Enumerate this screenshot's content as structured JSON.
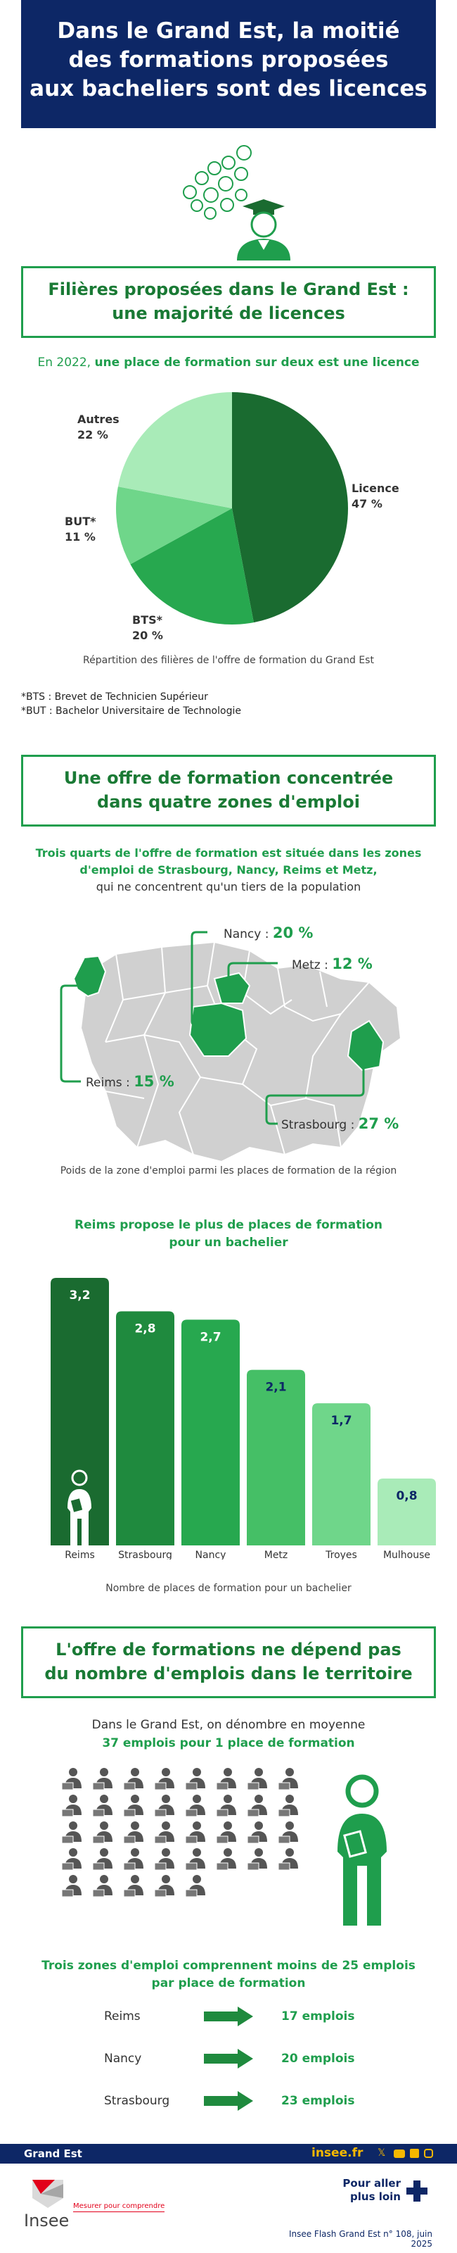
{
  "header": {
    "title_lines": [
      "Dans le Grand Est, la moitié",
      "des formations proposées",
      "aux bacheliers sont des licences"
    ]
  },
  "section1": {
    "title_lines": [
      "Filières proposées dans le Grand Est :",
      "une majorité de licences"
    ],
    "subtitle_prefix": "En 2022, ",
    "subtitle_bold": "une place de formation sur deux est une licence",
    "caption": "Répartition des filières de l'offre de formation du Grand Est",
    "footnotes": [
      "*BTS : Brevet de Technicien Supérieur",
      "*BUT : Bachelor Universitaire de Technologie"
    ]
  },
  "chart_data": [
    {
      "type": "pie",
      "slices": [
        {
          "label": "Licence",
          "value": 47,
          "display": "47 %",
          "color": "#1a6b30"
        },
        {
          "label": "BTS*",
          "value": 20,
          "display": "20 %",
          "color": "#27a84f"
        },
        {
          "label": "BUT*",
          "value": 11,
          "display": "11 %",
          "color": "#6fd68a"
        },
        {
          "label": "Autres",
          "value": 22,
          "display": "22 %",
          "color": "#a9ebb8"
        }
      ]
    },
    {
      "type": "bar",
      "categories": [
        "Reims",
        "Strasbourg",
        "Nancy",
        "Metz",
        "Troyes",
        "Mulhouse"
      ],
      "values": [
        3.2,
        2.8,
        2.7,
        2.1,
        1.7,
        0.8
      ],
      "value_labels": [
        "3,2",
        "2,8",
        "2,7",
        "2,1",
        "1,7",
        "0,8"
      ],
      "colors": [
        "#1a6b30",
        "#1f8a3e",
        "#27a84f",
        "#45bf66",
        "#6fd68a",
        "#a9ebb8"
      ],
      "title": "Reims propose le plus de places de formation pour un bachelier",
      "caption": "Nombre de places de formation pour un bachelier"
    }
  ],
  "section2": {
    "title_lines": [
      "Une offre de formation concentrée",
      "dans quatre zones d'emploi"
    ],
    "subtitle_bold_lines": [
      "Trois quarts de l'offre de formation est située dans les zones",
      "d'emploi de Strasbourg, Nancy, Reims et Metz,"
    ],
    "subtitle_normal": "qui ne concentrent qu'un tiers de la population",
    "map_labels": {
      "nancy": {
        "name": "Nancy : ",
        "value": "20 %"
      },
      "metz": {
        "name": "Metz : ",
        "value": "12 %"
      },
      "reims": {
        "name": "Reims : ",
        "value": "15 %"
      },
      "strasbourg": {
        "name": "Strasbourg : ",
        "value": "27 %"
      }
    },
    "map_caption": "Poids de la zone d'emploi parmi les places de formation de la région",
    "bar_title_lines": [
      "Reims propose le plus de places de formation",
      "pour un bachelier"
    ]
  },
  "section3": {
    "title_lines": [
      "L'offre de formations ne dépend pas",
      "du nombre d'emplois dans le territoire"
    ],
    "intro": "Dans le Grand Est, on dénombre en moyenne",
    "intro_bold": "37 emplois pour 1 place de formation",
    "workers_count": 37,
    "zones_title_lines": [
      "Trois zones d'emploi comprennent moins de 25 emplois",
      "par place de formation"
    ],
    "zones": [
      {
        "name": "Reims",
        "value": "17 emplois"
      },
      {
        "name": "Nancy",
        "value": "20 emplois"
      },
      {
        "name": "Strasbourg",
        "value": "23 emplois"
      }
    ]
  },
  "footer": {
    "region": "Grand Est",
    "site": "insee.fr",
    "social_icons": [
      "x-icon",
      "youtube-icon",
      "linkedin-icon",
      "instagram-icon"
    ],
    "logo_text": "Insee",
    "tagline": "Mesurer pour comprendre",
    "more_lines": [
      "Pour aller",
      "plus loin"
    ],
    "publication": "Insee Flash Grand Est n° 108, juin 2025"
  },
  "colors": {
    "navy": "#0d2766",
    "green": "#1f9e4d",
    "dark_green": "#1a6b30"
  }
}
